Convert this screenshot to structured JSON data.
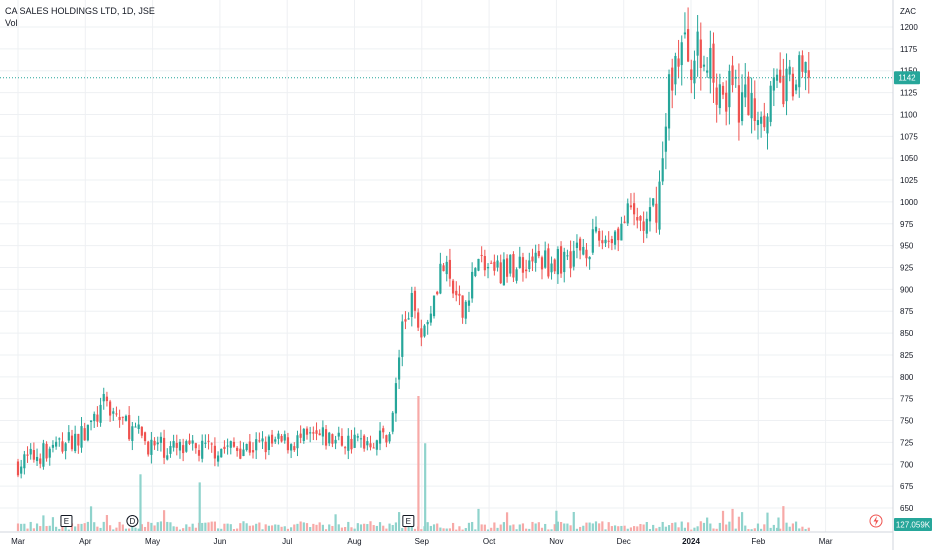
{
  "header": {
    "title": "CA SALES HOLDINGS LTD, 1D, JSE",
    "volume_label": "Vol",
    "currency": "ZAC"
  },
  "price_label": "1142",
  "volume_value_label": "127.059K",
  "event_markers": [
    {
      "label": "E",
      "month_index": 0.72
    },
    {
      "label": "D",
      "month_index": 1.7
    },
    {
      "label": "E",
      "month_index": 5.8
    }
  ],
  "colors": {
    "up": "#26a69a",
    "down": "#ef5350",
    "up_volume": "#8fd3cc",
    "down_volume": "#f7a9a7",
    "grid": "#eef0f3",
    "price_line": "#26a69a"
  },
  "chart_data": {
    "type": "candlestick",
    "title": "CA SALES HOLDINGS LTD, 1D, JSE",
    "currency": "ZAC",
    "x_axis_labels": [
      "Mar",
      "Apr",
      "May",
      "Jun",
      "Jul",
      "Aug",
      "Sep",
      "Oct",
      "Nov",
      "Dec",
      "2024",
      "Feb",
      "Mar"
    ],
    "y_axis_labels": [
      650,
      675,
      700,
      725,
      750,
      775,
      800,
      825,
      850,
      875,
      900,
      925,
      950,
      975,
      1000,
      1025,
      1050,
      1075,
      1100,
      1125,
      1150,
      1175,
      1200
    ],
    "ylim": [
      640,
      1215
    ],
    "last_price": 1142,
    "last_volume": "127.059K",
    "close_anchors": [
      {
        "t": 0.0,
        "close": 700
      },
      {
        "t": 0.5,
        "close": 718
      },
      {
        "t": 1.0,
        "close": 735
      },
      {
        "t": 1.3,
        "close": 770
      },
      {
        "t": 1.6,
        "close": 745
      },
      {
        "t": 2.0,
        "close": 720
      },
      {
        "t": 2.5,
        "close": 715
      },
      {
        "t": 3.0,
        "close": 718
      },
      {
        "t": 3.5,
        "close": 720
      },
      {
        "t": 4.0,
        "close": 725
      },
      {
        "t": 4.5,
        "close": 730
      },
      {
        "t": 5.0,
        "close": 725
      },
      {
        "t": 5.4,
        "close": 730
      },
      {
        "t": 5.55,
        "close": 740
      },
      {
        "t": 5.7,
        "close": 855
      },
      {
        "t": 5.9,
        "close": 890
      },
      {
        "t": 6.0,
        "close": 845
      },
      {
        "t": 6.3,
        "close": 930
      },
      {
        "t": 6.6,
        "close": 870
      },
      {
        "t": 6.8,
        "close": 930
      },
      {
        "t": 7.2,
        "close": 920
      },
      {
        "t": 7.6,
        "close": 935
      },
      {
        "t": 8.0,
        "close": 930
      },
      {
        "t": 8.4,
        "close": 950
      },
      {
        "t": 8.8,
        "close": 960
      },
      {
        "t": 9.1,
        "close": 985
      },
      {
        "t": 9.35,
        "close": 970
      },
      {
        "t": 9.55,
        "close": 1020
      },
      {
        "t": 9.7,
        "close": 1150
      },
      {
        "t": 9.85,
        "close": 1175
      },
      {
        "t": 10.2,
        "close": 1160
      },
      {
        "t": 10.6,
        "close": 1120
      },
      {
        "t": 11.0,
        "close": 1110
      },
      {
        "t": 11.4,
        "close": 1130
      },
      {
        "t": 11.75,
        "close": 1142
      }
    ],
    "volume_spikes": [
      {
        "t": 1.82,
        "value": 0.42,
        "dir": "up"
      },
      {
        "t": 2.7,
        "value": 0.36,
        "dir": "up"
      },
      {
        "t": 5.95,
        "value": 1.0,
        "dir": "down"
      },
      {
        "t": 6.05,
        "value": 0.65,
        "dir": "up"
      },
      {
        "t": 8.0,
        "value": 0.15,
        "dir": "up"
      },
      {
        "t": 11.3,
        "value": 0.1,
        "dir": "up"
      }
    ]
  }
}
